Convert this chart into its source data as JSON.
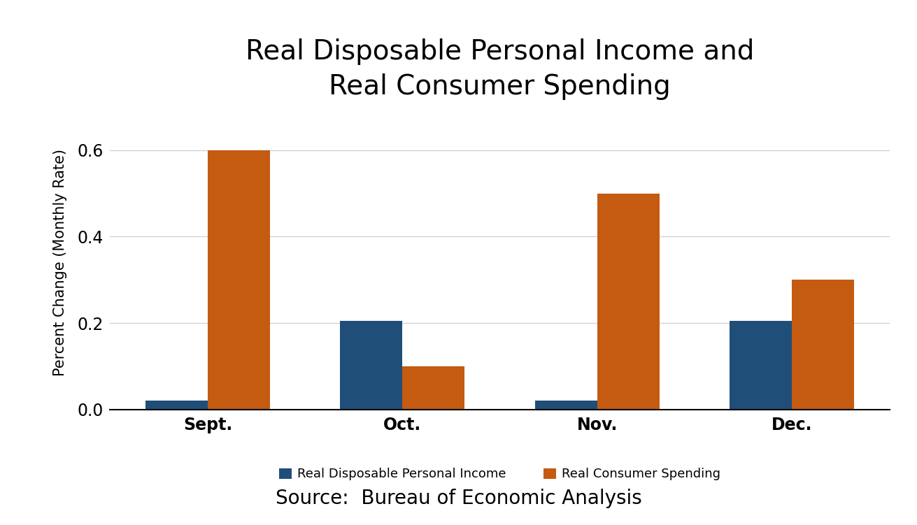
{
  "title": "Real Disposable Personal Income and\nReal Consumer Spending",
  "ylabel": "Percent Change (Monthly Rate)",
  "source": "Source:  Bureau of Economic Analysis",
  "categories": [
    "Sept.",
    "Oct.",
    "Nov.",
    "Dec."
  ],
  "income_values": [
    0.02,
    0.205,
    0.02,
    0.205
  ],
  "spending_values": [
    0.6,
    0.1,
    0.5,
    0.3
  ],
  "income_color": "#1F4E79",
  "spending_color": "#C55A11",
  "income_label": "Real Disposable Personal Income",
  "spending_label": "Real Consumer Spending",
  "ylim": [
    0,
    0.68
  ],
  "yticks": [
    0.0,
    0.2,
    0.4,
    0.6
  ],
  "bar_width": 0.32,
  "background_color": "#FFFFFF",
  "title_fontsize": 28,
  "ylabel_fontsize": 15,
  "tick_fontsize": 17,
  "legend_fontsize": 13,
  "source_fontsize": 20
}
